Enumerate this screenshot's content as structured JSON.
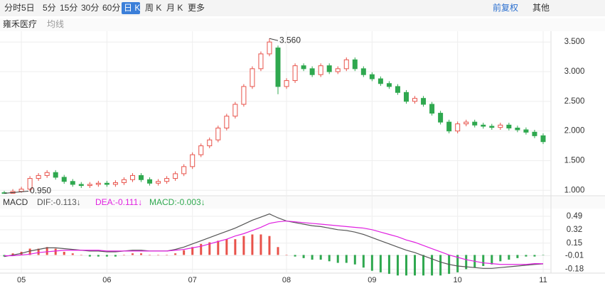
{
  "toolbar": {
    "items": [
      "分时",
      "5日",
      "5分",
      "15分",
      "30分",
      "60分",
      "日 K",
      "周 K",
      "月 K",
      "更多"
    ],
    "selected": "日 K",
    "right": [
      "前复权",
      "其他"
    ]
  },
  "panel": {
    "name": "雍禾医疗",
    "ma": "均线"
  },
  "chart_data": [
    {
      "type": "candlestick",
      "categories": [
        null,
        null,
        "05",
        null,
        null,
        null,
        null,
        null,
        null,
        null,
        null,
        null,
        "06",
        null,
        null,
        null,
        null,
        null,
        null,
        null,
        null,
        null,
        "07",
        null,
        null,
        null,
        null,
        null,
        null,
        null,
        null,
        null,
        null,
        "08",
        null,
        null,
        null,
        null,
        null,
        null,
        null,
        null,
        null,
        "09",
        null,
        null,
        null,
        null,
        null,
        null,
        null,
        null,
        null,
        "10",
        null,
        null,
        null,
        null,
        null,
        null,
        null,
        null,
        null,
        "11"
      ],
      "open": [
        0.96,
        0.95,
        0.98,
        1.02,
        1.2,
        1.25,
        1.3,
        1.22,
        1.15,
        1.1,
        1.08,
        1.1,
        1.12,
        1.1,
        1.13,
        1.18,
        1.25,
        1.18,
        1.12,
        1.15,
        1.2,
        1.28,
        1.4,
        1.6,
        1.75,
        1.85,
        2.05,
        2.25,
        2.45,
        2.75,
        3.05,
        3.3,
        3.4,
        2.75,
        2.85,
        3.1,
        3.05,
        2.95,
        3.1,
        3.0,
        3.05,
        3.2,
        3.05,
        2.95,
        2.88,
        2.8,
        2.75,
        2.65,
        2.5,
        2.55,
        2.45,
        2.3,
        2.15,
        2.0,
        2.12,
        2.15,
        2.1,
        2.08,
        2.06,
        2.1,
        2.05,
        2.02,
        1.98,
        1.92
      ],
      "high": [
        0.99,
        1.02,
        1.06,
        1.24,
        1.29,
        1.34,
        1.34,
        1.26,
        1.19,
        1.14,
        1.14,
        1.16,
        1.16,
        1.17,
        1.22,
        1.29,
        1.29,
        1.22,
        1.19,
        1.24,
        1.32,
        1.44,
        1.64,
        1.79,
        1.89,
        2.09,
        2.29,
        2.49,
        2.79,
        3.09,
        3.34,
        3.56,
        3.44,
        2.89,
        3.14,
        3.14,
        3.09,
        3.14,
        3.14,
        3.09,
        3.24,
        3.24,
        3.09,
        2.99,
        2.92,
        2.84,
        2.79,
        2.69,
        2.59,
        2.59,
        2.49,
        2.34,
        2.19,
        2.16,
        2.19,
        2.19,
        2.14,
        2.12,
        2.14,
        2.14,
        2.09,
        2.06,
        2.02,
        1.96
      ],
      "low": [
        0.95,
        0.95,
        0.96,
        0.98,
        1.16,
        1.21,
        1.18,
        1.11,
        1.06,
        1.04,
        1.04,
        1.06,
        1.06,
        1.06,
        1.09,
        1.14,
        1.14,
        1.08,
        1.08,
        1.11,
        1.16,
        1.24,
        1.36,
        1.56,
        1.71,
        1.81,
        2.01,
        2.21,
        2.41,
        2.71,
        3.01,
        3.26,
        2.62,
        2.71,
        2.81,
        3.01,
        2.91,
        2.91,
        2.96,
        2.96,
        3.01,
        3.01,
        2.91,
        2.84,
        2.76,
        2.71,
        2.61,
        2.46,
        2.46,
        2.41,
        2.26,
        2.11,
        1.96,
        1.96,
        2.08,
        2.06,
        2.04,
        2.02,
        2.02,
        2.01,
        1.98,
        1.94,
        1.88,
        1.78
      ],
      "close": [
        0.95,
        0.98,
        1.02,
        1.2,
        1.25,
        1.3,
        1.22,
        1.15,
        1.1,
        1.08,
        1.1,
        1.12,
        1.1,
        1.13,
        1.18,
        1.25,
        1.18,
        1.12,
        1.15,
        1.2,
        1.28,
        1.4,
        1.6,
        1.75,
        1.85,
        2.05,
        2.25,
        2.45,
        2.75,
        3.05,
        3.3,
        3.5,
        2.75,
        2.85,
        3.1,
        3.05,
        2.95,
        3.1,
        3.0,
        3.05,
        3.2,
        3.05,
        2.95,
        2.88,
        2.8,
        2.75,
        2.65,
        2.5,
        2.55,
        2.45,
        2.3,
        2.15,
        2.0,
        2.12,
        2.15,
        2.1,
        2.08,
        2.06,
        2.1,
        2.05,
        2.02,
        1.98,
        1.92,
        1.82
      ],
      "up_color": "#e8524a",
      "down_color": "#2fa84f",
      "ylim": [
        0.92,
        3.67
      ],
      "yticks": [
        {
          "value": 1.0,
          "label": "1.000"
        },
        {
          "value": 1.5,
          "label": "1.500"
        },
        {
          "value": 2.0,
          "label": "2.000"
        },
        {
          "value": 2.5,
          "label": "2.500"
        },
        {
          "value": 3.0,
          "label": "3.000"
        },
        {
          "value": 3.5,
          "label": "3.500"
        }
      ],
      "max_label": "3.560",
      "min_label": "0.950",
      "grid": true
    },
    {
      "type": "macd",
      "title": "MACD",
      "legend": [
        "DIF:-0.113↓",
        "DEA:-0.111↓",
        "MACD:-0.003↓"
      ],
      "series": [
        {
          "name": "DIF",
          "color": "#555555",
          "values": [
            -0.02,
            0.0,
            0.02,
            0.05,
            0.07,
            0.09,
            0.09,
            0.08,
            0.07,
            0.06,
            0.05,
            0.05,
            0.04,
            0.04,
            0.05,
            0.06,
            0.06,
            0.05,
            0.05,
            0.05,
            0.07,
            0.1,
            0.14,
            0.18,
            0.22,
            0.26,
            0.3,
            0.34,
            0.39,
            0.44,
            0.48,
            0.52,
            0.47,
            0.43,
            0.41,
            0.39,
            0.37,
            0.36,
            0.34,
            0.32,
            0.31,
            0.29,
            0.26,
            0.22,
            0.18,
            0.14,
            0.1,
            0.06,
            0.03,
            -0.01,
            -0.05,
            -0.09,
            -0.12,
            -0.14,
            -0.15,
            -0.16,
            -0.17,
            -0.17,
            -0.16,
            -0.15,
            -0.14,
            -0.13,
            -0.12,
            -0.113
          ]
        },
        {
          "name": "DEA",
          "color": "#e020e0",
          "values": [
            -0.01,
            -0.01,
            0.0,
            0.01,
            0.03,
            0.04,
            0.05,
            0.06,
            0.06,
            0.06,
            0.06,
            0.06,
            0.05,
            0.05,
            0.05,
            0.05,
            0.05,
            0.05,
            0.05,
            0.05,
            0.06,
            0.07,
            0.09,
            0.11,
            0.14,
            0.17,
            0.2,
            0.24,
            0.27,
            0.31,
            0.35,
            0.4,
            0.42,
            0.43,
            0.42,
            0.41,
            0.4,
            0.39,
            0.38,
            0.37,
            0.36,
            0.35,
            0.34,
            0.32,
            0.29,
            0.26,
            0.23,
            0.19,
            0.16,
            0.12,
            0.08,
            0.04,
            0.0,
            -0.03,
            -0.06,
            -0.08,
            -0.1,
            -0.11,
            -0.12,
            -0.12,
            -0.12,
            -0.12,
            -0.11,
            -0.111
          ]
        },
        {
          "name": "MACD",
          "color": "#2fa84f",
          "up_color": "#e8524a",
          "values": [
            -0.02,
            0.02,
            0.04,
            0.08,
            0.08,
            0.1,
            0.08,
            0.04,
            0.02,
            0.0,
            -0.02,
            -0.02,
            -0.02,
            -0.02,
            0.0,
            0.02,
            0.02,
            0.0,
            0.0,
            0.0,
            0.02,
            0.06,
            0.1,
            0.14,
            0.16,
            0.18,
            0.2,
            0.2,
            0.24,
            0.26,
            0.26,
            0.24,
            0.1,
            0.0,
            -0.02,
            -0.04,
            -0.06,
            -0.06,
            -0.08,
            -0.1,
            -0.1,
            -0.12,
            -0.16,
            -0.2,
            -0.22,
            -0.24,
            -0.26,
            -0.26,
            -0.26,
            -0.26,
            -0.26,
            -0.26,
            -0.24,
            -0.22,
            -0.18,
            -0.16,
            -0.14,
            -0.12,
            -0.08,
            -0.06,
            -0.04,
            -0.02,
            -0.02,
            -0.003
          ]
        }
      ],
      "ylim": [
        -0.23,
        0.57
      ],
      "yticks": [
        -0.18,
        -0.01,
        0.15,
        0.32,
        0.49
      ],
      "grid": true
    }
  ]
}
